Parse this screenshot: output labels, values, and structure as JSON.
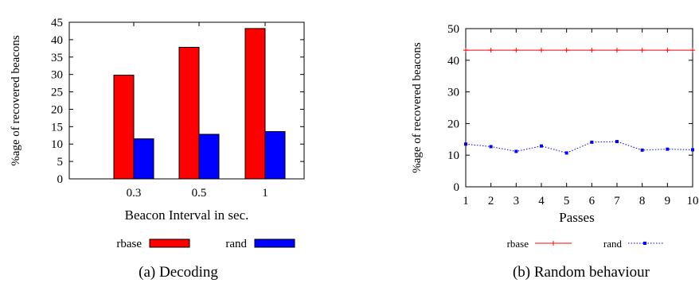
{
  "chart_data": [
    {
      "type": "bar",
      "caption": "(a) Decoding",
      "xlabel": "Beacon Interval in sec.",
      "ylabel": "%age of recovered beacons",
      "categories": [
        "0.3",
        "0.5",
        "1"
      ],
      "ylim": [
        0,
        45
      ],
      "yticks": [
        0,
        5,
        10,
        15,
        20,
        25,
        30,
        35,
        40,
        45
      ],
      "grid": false,
      "legend_position": "bottom",
      "series": [
        {
          "name": "rbase",
          "color": "#ff0000",
          "values": [
            29.8,
            37.8,
            43.2
          ]
        },
        {
          "name": "rand",
          "color": "#0000ff",
          "values": [
            11.5,
            12.8,
            13.6
          ]
        }
      ]
    },
    {
      "type": "line",
      "caption": "(b) Random behaviour",
      "xlabel": "Passes",
      "ylabel": "%age of recovered beacons",
      "x": [
        1,
        2,
        3,
        4,
        5,
        6,
        7,
        8,
        9,
        10
      ],
      "xlim": [
        1,
        10
      ],
      "ylim": [
        0,
        50
      ],
      "yticks": [
        0,
        10,
        20,
        30,
        40,
        50
      ],
      "grid": false,
      "legend_position": "bottom",
      "series": [
        {
          "name": "rbase",
          "color": "#ff0000",
          "line_style": "solid",
          "marker": "plus",
          "values": [
            43.2,
            43.2,
            43.2,
            43.2,
            43.2,
            43.2,
            43.2,
            43.2,
            43.2,
            43.2
          ]
        },
        {
          "name": "rand",
          "color": "#0000ff",
          "line_style": "dotted",
          "marker": "square",
          "values": [
            13.5,
            12.7,
            11.2,
            12.9,
            10.7,
            14.1,
            14.3,
            11.6,
            11.9,
            11.7
          ]
        }
      ]
    }
  ]
}
